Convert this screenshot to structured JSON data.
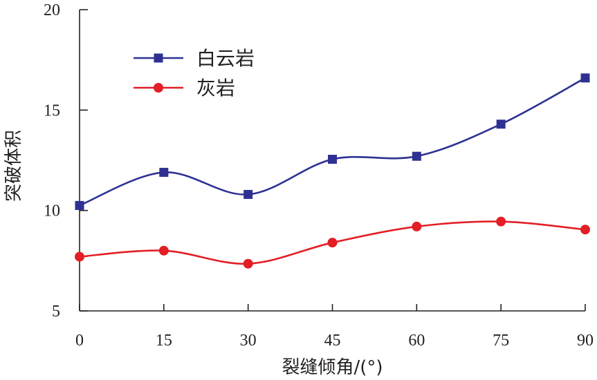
{
  "chart_data": {
    "type": "line",
    "xlabel": "裂缝倾角/(°)",
    "ylabel": "突破体积",
    "x": [
      0,
      15,
      30,
      45,
      60,
      75,
      90
    ],
    "xlim": [
      0,
      90
    ],
    "ylim": [
      5,
      20
    ],
    "xticks": [
      0,
      15,
      30,
      45,
      60,
      75,
      90
    ],
    "yticks": [
      5,
      10,
      15,
      20
    ],
    "grid": false,
    "legend_position": "top-left",
    "series": [
      {
        "name": "白云岩",
        "values": [
          10.25,
          11.9,
          10.8,
          12.55,
          12.7,
          14.3,
          16.6
        ],
        "color": "#2e3192",
        "marker": "square"
      },
      {
        "name": "灰岩",
        "values": [
          7.7,
          8.0,
          7.35,
          8.4,
          9.2,
          9.45,
          9.05
        ],
        "color": "#e31e25",
        "marker": "circle"
      }
    ]
  }
}
